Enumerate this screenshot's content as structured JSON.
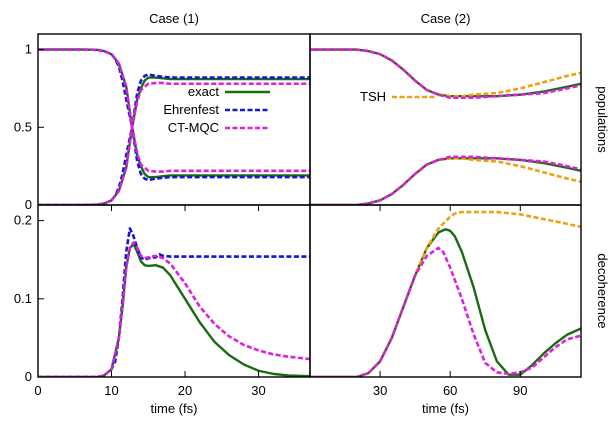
{
  "chart_data": [
    {
      "type": "line",
      "title": "Case (1)",
      "xlim": [
        0,
        37
      ],
      "ylim": [
        0,
        1.1
      ],
      "yticks": [
        {
          "value": 0,
          "label": "0"
        },
        {
          "value": 0.5,
          "label": "0.5"
        },
        {
          "value": 1,
          "label": "1"
        }
      ],
      "legend": [
        "exact",
        "Ehrenfest",
        "CT-MQC"
      ],
      "legend_position": "center-right",
      "series": [
        {
          "name": "exact",
          "color": "#1a6b12",
          "dashed": false,
          "x": [
            0,
            6,
            8,
            9,
            10,
            11,
            12,
            12.8,
            13.5,
            14,
            14.5,
            15,
            16,
            17,
            18,
            20,
            25,
            30,
            37
          ],
          "y": [
            1,
            1,
            0.998,
            0.99,
            0.97,
            0.91,
            0.76,
            0.5,
            0.32,
            0.25,
            0.2,
            0.18,
            0.18,
            0.185,
            0.19,
            0.19,
            0.19,
            0.19,
            0.19
          ]
        },
        {
          "name": "exact",
          "color": "#1a6b12",
          "dashed": false,
          "x": [
            0,
            6,
            8,
            9,
            10,
            11,
            12,
            12.8,
            13.5,
            14,
            14.5,
            15,
            16,
            17,
            18,
            20,
            25,
            30,
            37
          ],
          "y": [
            0,
            0,
            0.002,
            0.01,
            0.03,
            0.09,
            0.24,
            0.5,
            0.68,
            0.75,
            0.8,
            0.82,
            0.82,
            0.815,
            0.81,
            0.81,
            0.81,
            0.81,
            0.81
          ]
        },
        {
          "name": "Ehrenfest",
          "color": "#1515d6",
          "dashed": true,
          "x": [
            0,
            6,
            8,
            9,
            10,
            10.5,
            11,
            11.5,
            12,
            12.8,
            13.5,
            14,
            14.5,
            15,
            16,
            18,
            20,
            25,
            30,
            37
          ],
          "y": [
            1,
            1,
            0.998,
            0.99,
            0.97,
            0.94,
            0.89,
            0.8,
            0.68,
            0.5,
            0.28,
            0.2,
            0.17,
            0.16,
            0.17,
            0.18,
            0.18,
            0.18,
            0.18,
            0.18
          ]
        },
        {
          "name": "Ehrenfest",
          "color": "#1515d6",
          "dashed": true,
          "x": [
            0,
            6,
            8,
            9,
            10,
            10.5,
            11,
            11.5,
            12,
            12.8,
            13.5,
            14,
            14.5,
            15,
            16,
            18,
            20,
            25,
            30,
            37
          ],
          "y": [
            0,
            0,
            0.002,
            0.01,
            0.03,
            0.06,
            0.11,
            0.2,
            0.32,
            0.5,
            0.72,
            0.8,
            0.83,
            0.84,
            0.83,
            0.82,
            0.82,
            0.82,
            0.82,
            0.82
          ]
        },
        {
          "name": "CT-MQC",
          "color": "#e01ee0",
          "dashed": true,
          "x": [
            0,
            6,
            8,
            9,
            10,
            11,
            12,
            12.8,
            13.5,
            14,
            15,
            16,
            17,
            18,
            20,
            25,
            30,
            37
          ],
          "y": [
            1,
            1,
            0.998,
            0.99,
            0.97,
            0.91,
            0.76,
            0.5,
            0.33,
            0.26,
            0.22,
            0.215,
            0.215,
            0.22,
            0.22,
            0.22,
            0.22,
            0.22
          ]
        },
        {
          "name": "CT-MQC",
          "color": "#e01ee0",
          "dashed": true,
          "x": [
            0,
            6,
            8,
            9,
            10,
            11,
            12,
            12.8,
            13.5,
            14,
            15,
            16,
            17,
            18,
            20,
            25,
            30,
            37
          ],
          "y": [
            0,
            0,
            0.002,
            0.01,
            0.03,
            0.09,
            0.24,
            0.5,
            0.67,
            0.74,
            0.78,
            0.785,
            0.785,
            0.78,
            0.78,
            0.78,
            0.78,
            0.78
          ]
        }
      ]
    },
    {
      "type": "line",
      "title": "Case (2)",
      "ylabel": "populations",
      "xlim": [
        0,
        116
      ],
      "ylim": [
        0,
        1.1
      ],
      "legend": [
        "TSH"
      ],
      "legend_position": "center-left",
      "series": [
        {
          "name": "exact",
          "color": "#1a6b12",
          "dashed": false,
          "x": [
            0,
            20,
            25,
            30,
            35,
            40,
            45,
            50,
            55,
            60,
            65,
            70,
            80,
            90,
            100,
            110,
            116
          ],
          "y": [
            1,
            1,
            0.99,
            0.97,
            0.93,
            0.87,
            0.8,
            0.74,
            0.71,
            0.7,
            0.7,
            0.7,
            0.7,
            0.71,
            0.73,
            0.76,
            0.78
          ]
        },
        {
          "name": "exact",
          "color": "#1a6b12",
          "dashed": false,
          "x": [
            0,
            20,
            25,
            30,
            35,
            40,
            45,
            50,
            55,
            60,
            65,
            70,
            80,
            90,
            100,
            110,
            116
          ],
          "y": [
            0,
            0,
            0.01,
            0.03,
            0.07,
            0.13,
            0.2,
            0.26,
            0.29,
            0.3,
            0.3,
            0.3,
            0.3,
            0.29,
            0.27,
            0.24,
            0.22
          ]
        },
        {
          "name": "TSH",
          "color": "#f0a010",
          "dashed": true,
          "x": [
            0,
            20,
            25,
            30,
            35,
            40,
            45,
            50,
            55,
            60,
            65,
            70,
            80,
            90,
            100,
            110,
            116
          ],
          "y": [
            1,
            1,
            0.99,
            0.97,
            0.93,
            0.87,
            0.8,
            0.74,
            0.71,
            0.7,
            0.7,
            0.71,
            0.72,
            0.75,
            0.79,
            0.83,
            0.85
          ]
        },
        {
          "name": "TSH",
          "color": "#f0a010",
          "dashed": true,
          "x": [
            0,
            20,
            25,
            30,
            35,
            40,
            45,
            50,
            55,
            60,
            65,
            70,
            80,
            90,
            100,
            110,
            116
          ],
          "y": [
            0,
            0,
            0.01,
            0.03,
            0.07,
            0.13,
            0.2,
            0.26,
            0.29,
            0.3,
            0.3,
            0.29,
            0.28,
            0.25,
            0.21,
            0.17,
            0.15
          ]
        },
        {
          "name": "CT-MQC",
          "color": "#e01ee0",
          "dashed": true,
          "x": [
            0,
            20,
            25,
            30,
            35,
            40,
            45,
            50,
            55,
            60,
            65,
            70,
            80,
            90,
            100,
            110,
            116
          ],
          "y": [
            1,
            1,
            0.99,
            0.97,
            0.93,
            0.87,
            0.8,
            0.74,
            0.71,
            0.69,
            0.69,
            0.69,
            0.7,
            0.71,
            0.72,
            0.75,
            0.77
          ]
        },
        {
          "name": "CT-MQC",
          "color": "#e01ee0",
          "dashed": true,
          "x": [
            0,
            20,
            25,
            30,
            35,
            40,
            45,
            50,
            55,
            60,
            65,
            70,
            80,
            90,
            100,
            110,
            116
          ],
          "y": [
            0,
            0,
            0.01,
            0.03,
            0.07,
            0.13,
            0.2,
            0.26,
            0.29,
            0.31,
            0.31,
            0.31,
            0.3,
            0.29,
            0.28,
            0.25,
            0.23
          ]
        }
      ]
    },
    {
      "type": "line",
      "xlabel": "time (fs)",
      "xlim": [
        0,
        37
      ],
      "ylim": [
        0,
        0.22
      ],
      "xticks": [
        {
          "value": 0,
          "label": "0"
        },
        {
          "value": 10,
          "label": "10"
        },
        {
          "value": 20,
          "label": "20"
        },
        {
          "value": 30,
          "label": "30"
        }
      ],
      "yticks": [
        {
          "value": 0,
          "label": "0"
        },
        {
          "value": 0.1,
          "label": "0.1"
        },
        {
          "value": 0.2,
          "label": "0.2"
        }
      ],
      "series": [
        {
          "name": "exact",
          "color": "#1a6b12",
          "dashed": false,
          "x": [
            0,
            8,
            9,
            10,
            11,
            11.5,
            12,
            12.5,
            13,
            13.5,
            14,
            14.5,
            15,
            16,
            17,
            18,
            20,
            22,
            24,
            26,
            28,
            30,
            32,
            34,
            37
          ],
          "y": [
            0,
            0,
            0.002,
            0.01,
            0.05,
            0.09,
            0.14,
            0.165,
            0.17,
            0.16,
            0.148,
            0.143,
            0.142,
            0.143,
            0.14,
            0.13,
            0.1,
            0.07,
            0.045,
            0.028,
            0.016,
            0.008,
            0.004,
            0.002,
            0.001
          ]
        },
        {
          "name": "Ehrenfest",
          "color": "#1515d6",
          "dashed": true,
          "x": [
            0,
            8,
            9,
            10,
            10.5,
            11,
            11.5,
            12,
            12.5,
            13,
            13.5,
            14,
            14.5,
            15,
            16,
            16.5,
            17,
            18,
            20,
            25,
            30,
            37
          ],
          "y": [
            0,
            0,
            0.002,
            0.01,
            0.02,
            0.05,
            0.1,
            0.16,
            0.19,
            0.18,
            0.165,
            0.153,
            0.15,
            0.152,
            0.153,
            0.157,
            0.155,
            0.154,
            0.154,
            0.154,
            0.154,
            0.154
          ]
        },
        {
          "name": "CT-MQC",
          "color": "#e01ee0",
          "dashed": true,
          "x": [
            0,
            8,
            9,
            10,
            11,
            11.5,
            12,
            12.5,
            13,
            13.5,
            14,
            14.5,
            15,
            16,
            17,
            18,
            20,
            22,
            24,
            26,
            28,
            30,
            32,
            34,
            37
          ],
          "y": [
            0,
            0,
            0.002,
            0.01,
            0.05,
            0.09,
            0.14,
            0.165,
            0.172,
            0.165,
            0.155,
            0.152,
            0.153,
            0.155,
            0.152,
            0.145,
            0.12,
            0.09,
            0.068,
            0.052,
            0.041,
            0.034,
            0.029,
            0.026,
            0.023
          ]
        }
      ]
    },
    {
      "type": "line",
      "xlabel": "time (fs)",
      "ylabel": "decoherence",
      "xlim": [
        0,
        116
      ],
      "ylim": [
        0,
        0.22
      ],
      "xticks": [
        {
          "value": 30,
          "label": "30"
        },
        {
          "value": 60,
          "label": "60"
        },
        {
          "value": 90,
          "label": "90"
        }
      ],
      "series": [
        {
          "name": "exact",
          "color": "#1a6b12",
          "dashed": false,
          "x": [
            0,
            20,
            25,
            30,
            35,
            40,
            45,
            50,
            55,
            58,
            60,
            62,
            65,
            70,
            75,
            80,
            85,
            90,
            95,
            100,
            105,
            110,
            116
          ],
          "y": [
            0,
            0,
            0.005,
            0.02,
            0.05,
            0.09,
            0.13,
            0.165,
            0.185,
            0.189,
            0.187,
            0.18,
            0.16,
            0.115,
            0.06,
            0.02,
            0.003,
            0.003,
            0.015,
            0.03,
            0.043,
            0.054,
            0.062
          ]
        },
        {
          "name": "TSH",
          "color": "#f0a010",
          "dashed": true,
          "x": [
            0,
            20,
            25,
            30,
            35,
            40,
            45,
            50,
            55,
            60,
            62,
            65,
            70,
            80,
            90,
            100,
            110,
            116
          ],
          "y": [
            0,
            0,
            0.005,
            0.02,
            0.05,
            0.09,
            0.13,
            0.165,
            0.19,
            0.205,
            0.209,
            0.211,
            0.211,
            0.211,
            0.208,
            0.202,
            0.196,
            0.192
          ]
        },
        {
          "name": "CT-MQC",
          "color": "#e01ee0",
          "dashed": true,
          "x": [
            0,
            20,
            25,
            30,
            35,
            40,
            45,
            50,
            55,
            57,
            60,
            65,
            70,
            75,
            80,
            85,
            90,
            95,
            100,
            105,
            110,
            116
          ],
          "y": [
            0,
            0,
            0.005,
            0.02,
            0.05,
            0.09,
            0.13,
            0.155,
            0.165,
            0.16,
            0.14,
            0.1,
            0.055,
            0.018,
            0.006,
            0.004,
            0.006,
            0.012,
            0.025,
            0.038,
            0.048,
            0.053
          ]
        }
      ]
    }
  ]
}
